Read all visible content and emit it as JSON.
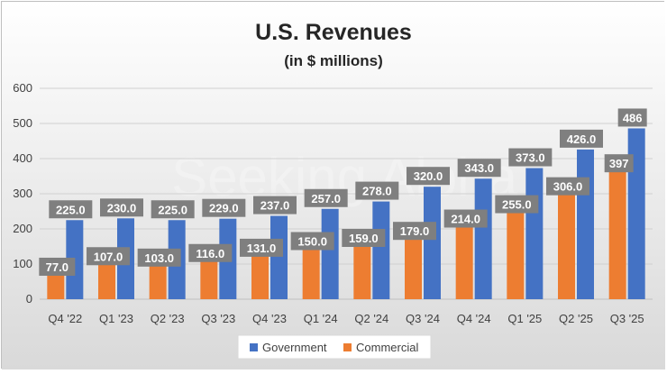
{
  "chart_data": {
    "type": "bar",
    "title": "U.S. Revenues",
    "subtitle": "(in $ millions)",
    "xlabel": "",
    "ylabel": "",
    "ylim": [
      0,
      600
    ],
    "yticks": [
      "0",
      "100",
      "200",
      "300",
      "400",
      "500",
      "600"
    ],
    "grid": true,
    "legend": "bottom-center",
    "watermark": "Seeking Alpha",
    "categories": [
      "Q4 '22",
      "Q1 '23",
      "Q2 '23",
      "Q3 '23",
      "Q4 '23",
      "Q1 '24",
      "Q2 '24",
      "Q3 '24",
      "Q4 '24",
      "Q1 '25",
      "Q2 '25",
      "Q3 '25"
    ],
    "series": [
      {
        "name": "Commercial",
        "color": "#ED7D31",
        "values": [
          77,
          107,
          103,
          116,
          131,
          150,
          159,
          179,
          214,
          255,
          306,
          397
        ],
        "labels": [
          "77.0",
          "107.0",
          "103.0",
          "116.0",
          "131.0",
          "150.0",
          "159.0",
          "179.0",
          "214.0",
          "255.0",
          "306.0",
          "397"
        ]
      },
      {
        "name": "Government",
        "color": "#4472C4",
        "values": [
          225,
          230,
          225,
          229,
          237,
          257,
          278,
          320,
          343,
          373,
          426,
          486
        ],
        "labels": [
          "225.0",
          "230.0",
          "225.0",
          "229.0",
          "237.0",
          "257.0",
          "278.0",
          "320.0",
          "343.0",
          "373.0",
          "426.0",
          "486"
        ]
      }
    ],
    "legend_entries": [
      "Government",
      "Commercial"
    ]
  }
}
